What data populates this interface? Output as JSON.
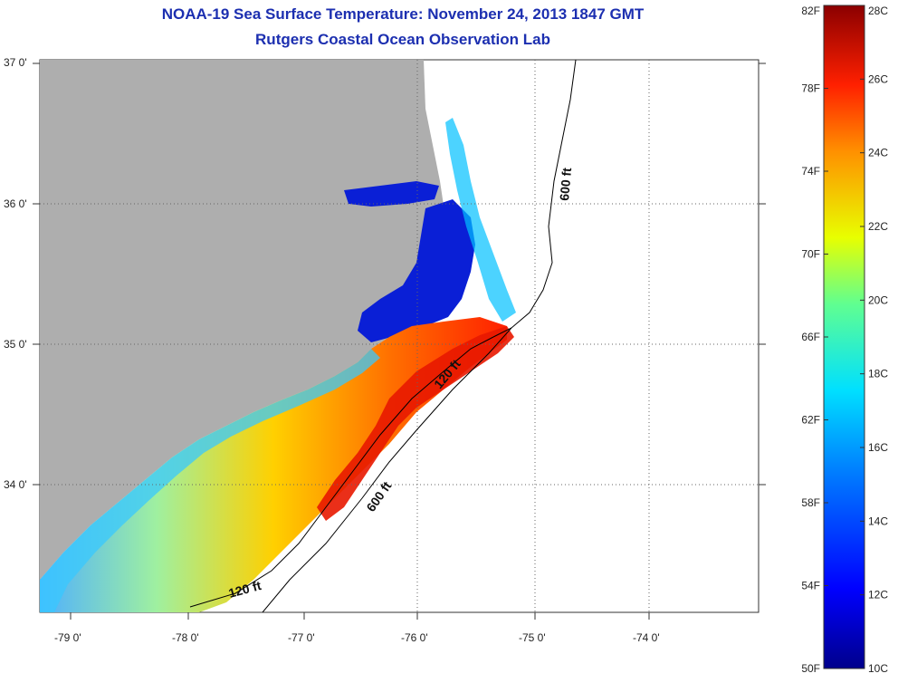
{
  "header": {
    "title": "NOAA-19 Sea Surface Temperature:  November 24, 2013 1847 GMT",
    "subtitle": "Rutgers Coastal Ocean Observation Lab"
  },
  "axes": {
    "lat_ticks": [
      "37 0'",
      "36 0'",
      "35 0'",
      "34 0'"
    ],
    "lon_ticks": [
      "-79 0'",
      "-78 0'",
      "-77 0'",
      "-76 0'",
      "-75 0'",
      "-74 0'"
    ]
  },
  "contours": [
    {
      "label": "600 ft"
    },
    {
      "label": "120 ft"
    },
    {
      "label": "600 ft"
    },
    {
      "label": "120 ft"
    }
  ],
  "colorbar": {
    "fahrenheit_labels": [
      "82F",
      "78F",
      "74F",
      "70F",
      "66F",
      "62F",
      "58F",
      "54F",
      "50F"
    ],
    "celsius_labels": [
      "28C",
      "26C",
      "24C",
      "22C",
      "20C",
      "18C",
      "16C",
      "14C",
      "12C",
      "10C"
    ],
    "range_c": [
      10,
      28
    ],
    "range_f": [
      50,
      82
    ]
  },
  "colors": {
    "land": "#aeaeae",
    "title": "#1c2fb0",
    "cold": "#00008b",
    "warm": "#8b0000"
  }
}
